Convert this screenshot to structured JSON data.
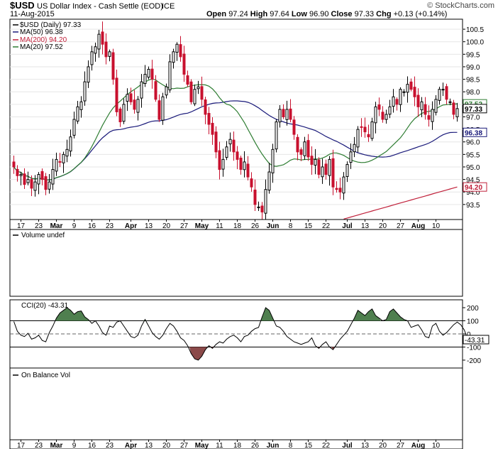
{
  "header": {
    "symbol": "$USD",
    "name": "US Dollar Index - Cash Settle (EOD)",
    "exchange": "ICE",
    "date": "11-Aug-2015",
    "watermark": "© StockCharts.com",
    "ohlc_line": "Open 97.24 High 97.64 Low 96.90 Close 97.33 Chg +0.13 (+0.14%)",
    "ohlc_labels": {
      "open": "Open",
      "high": "High",
      "low": "Low",
      "close": "Close",
      "chg": "Chg"
    },
    "ohlc_values": {
      "open": "97.24",
      "high": "97.64",
      "low": "96.90",
      "close": "97.33",
      "chg": "+0.13 (+0.14%)"
    }
  },
  "legend": [
    {
      "label": "$USD (Daily) 97.33",
      "color": "#000000"
    },
    {
      "label": "MA(50) 96.38",
      "color": "#1a1a7a"
    },
    {
      "label": "MA(200) 94.20",
      "color": "#c0203a"
    },
    {
      "label": "MA(20) 97.52",
      "color": "#2e7d32"
    }
  ],
  "panels": {
    "volume_label": "Volume undef",
    "cci_label": "CCI(20) -43.31",
    "obv_label": "On Balance Vol"
  },
  "price_tags": {
    "ma20": "97.52",
    "close": "97.33",
    "ma50": "96.38",
    "ma200": "94.20",
    "cci": "-43.31"
  },
  "x_ticks": [
    "17",
    "23",
    "Mar",
    "9",
    "16",
    "23",
    "Apr",
    "13",
    "20",
    "27",
    "May",
    "11",
    "18",
    "26",
    "Jun",
    "8",
    "15",
    "22",
    "Jul",
    "13",
    "20",
    "27",
    "Aug",
    "10"
  ],
  "colors": {
    "up": "#000000",
    "down": "#c8102e",
    "ma20": "#2e7d32",
    "ma50": "#1a1a7a",
    "ma200": "#c0203a",
    "cci_pos": "#4f7f4f",
    "cci_neg": "#8b4a4a"
  },
  "chart_data": [
    {
      "type": "candlestick",
      "title": "$USD US Dollar Index - Cash Settle (EOD)",
      "y_ticks": [
        93.5,
        94.0,
        94.5,
        95.0,
        95.5,
        96.0,
        96.5,
        97.0,
        97.5,
        98.0,
        98.5,
        99.0,
        99.5,
        100.0,
        100.5
      ],
      "ylim": [
        92.9,
        100.9
      ],
      "x_tick_labels": [
        "17",
        "23",
        "Mar",
        "9",
        "16",
        "23",
        "Apr",
        "13",
        "20",
        "27",
        "May",
        "11",
        "18",
        "26",
        "Jun",
        "8",
        "15",
        "22",
        "Jul",
        "13",
        "20",
        "27",
        "Aug",
        "10"
      ],
      "close": [
        95.0,
        94.65,
        94.7,
        94.3,
        94.5,
        94.15,
        94.4,
        94.7,
        94.5,
        94.1,
        94.4,
        94.9,
        95.3,
        95.2,
        95.5,
        95.7,
        96.2,
        96.9,
        97.4,
        97.6,
        98.4,
        99.0,
        99.6,
        99.8,
        100.3,
        99.9,
        99.4,
        99.6,
        98.5,
        97.2,
        96.8,
        97.5,
        97.9,
        97.6,
        97.3,
        97.7,
        98.4,
        98.7,
        98.9,
        98.5,
        97.7,
        96.9,
        97.8,
        98.2,
        99.2,
        99.6,
        99.9,
        99.4,
        98.7,
        98.3,
        97.6,
        98.1,
        98.2,
        97.7,
        97.1,
        96.7,
        96.3,
        95.6,
        94.9,
        95.3,
        95.8,
        96.1,
        95.6,
        95.3,
        94.9,
        95.2,
        94.6,
        94.2,
        93.5,
        93.4,
        93.2,
        94.1,
        94.8,
        95.7,
        96.8,
        97.3,
        97.0,
        97.3,
        96.9,
        96.3,
        95.6,
        95.5,
        96.0,
        95.4,
        95.1,
        95.3,
        94.7,
        95.0,
        94.7,
        95.3,
        94.2,
        94.1,
        94.0,
        94.6,
        95.1,
        95.6,
        95.9,
        96.5,
        96.6,
        96.4,
        96.2,
        96.8,
        97.4,
        97.3,
        96.9,
        97.1,
        97.4,
        97.8,
        97.5,
        98.1,
        98.0,
        98.3,
        98.1,
        97.8,
        97.4,
        97.6,
        97.1,
        96.9,
        97.3,
        97.7,
        98.1,
        98.1,
        97.7,
        97.6,
        97.1,
        97.33
      ],
      "moving_averages": [
        {
          "name": "MA(20)",
          "last": 97.52
        },
        {
          "name": "MA(50)",
          "last": 96.38
        },
        {
          "name": "MA(200)",
          "last": 94.2
        }
      ]
    },
    {
      "type": "line",
      "title": "CCI(20)",
      "y_ticks": [
        200,
        100,
        0,
        -100,
        -200
      ],
      "ylim": [
        -260,
        260
      ],
      "last": -43.31,
      "values": [
        95,
        20,
        -10,
        -20,
        5,
        -40,
        -30,
        -10,
        -50,
        -60,
        10,
        60,
        120,
        160,
        180,
        200,
        180,
        150,
        170,
        175,
        130,
        110,
        80,
        100,
        60,
        10,
        -10,
        60,
        50,
        90,
        100,
        60,
        20,
        -20,
        -30,
        -10,
        60,
        110,
        60,
        10,
        -20,
        -40,
        -10,
        40,
        80,
        60,
        20,
        -30,
        -50,
        -90,
        -150,
        -190,
        -200,
        -170,
        -120,
        -90,
        -110,
        -80,
        -60,
        -70,
        -40,
        -20,
        -10,
        -30,
        -60,
        -20,
        -10,
        20,
        40,
        50,
        130,
        200,
        180,
        120,
        60,
        50,
        20,
        -20,
        -40,
        -60,
        -70,
        -80,
        -70,
        -60,
        -30,
        -90,
        -110,
        -80,
        -60,
        -100,
        -120,
        -80,
        -40,
        -10,
        20,
        70,
        120,
        180,
        160,
        140,
        170,
        190,
        140,
        120,
        100,
        110,
        170,
        190,
        160,
        130,
        110,
        100,
        50,
        60,
        70,
        30,
        -20,
        -30,
        60,
        80,
        20,
        -10,
        10,
        40,
        70,
        90,
        70,
        30,
        -43.31
      ]
    }
  ]
}
